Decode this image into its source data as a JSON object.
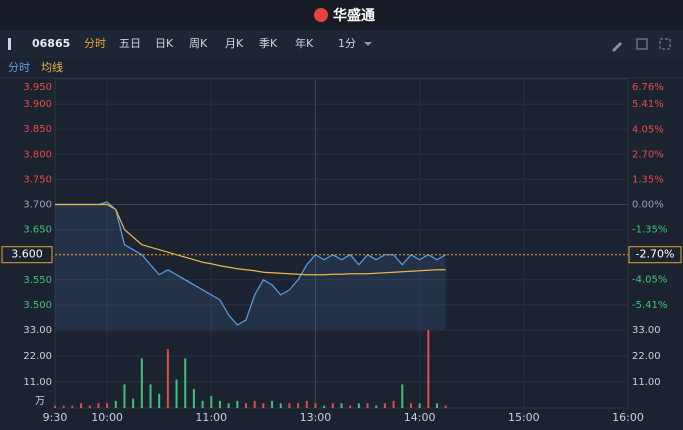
{
  "header": {
    "brand": "华盛通"
  },
  "toolbar": {
    "symbol": "06865",
    "tabs": [
      "分时",
      "五日",
      "日K",
      "周K",
      "月K",
      "季K",
      "年K"
    ],
    "active_tab": 0,
    "interval": "1分"
  },
  "legend": [
    "分时",
    "均线"
  ],
  "chart_data": [
    {
      "type": "line",
      "x": [
        0,
        5,
        10,
        15,
        20,
        25,
        30,
        35,
        40,
        45,
        50,
        55,
        60,
        65,
        70,
        75,
        80,
        85,
        90,
        95,
        100,
        105,
        110,
        115,
        120,
        125,
        130,
        135,
        140,
        145,
        150,
        155,
        160,
        165,
        170,
        175,
        180,
        185,
        190,
        195,
        200,
        205,
        210,
        215,
        220,
        225
      ],
      "series": [
        {
          "name": "分时",
          "color": "#5aa2e8",
          "fill": true,
          "values": [
            3.7,
            3.7,
            3.7,
            3.7,
            3.7,
            3.7,
            3.705,
            3.69,
            3.62,
            3.61,
            3.6,
            3.58,
            3.56,
            3.57,
            3.56,
            3.55,
            3.54,
            3.53,
            3.52,
            3.51,
            3.48,
            3.46,
            3.47,
            3.52,
            3.55,
            3.54,
            3.52,
            3.53,
            3.55,
            3.58,
            3.6,
            3.59,
            3.6,
            3.59,
            3.6,
            3.58,
            3.6,
            3.59,
            3.6,
            3.6,
            3.58,
            3.6,
            3.59,
            3.6,
            3.59,
            3.6
          ]
        },
        {
          "name": "均线",
          "color": "#e8b84a",
          "values": [
            3.7,
            3.7,
            3.7,
            3.7,
            3.7,
            3.7,
            3.7,
            3.69,
            3.65,
            3.635,
            3.62,
            3.615,
            3.61,
            3.605,
            3.6,
            3.595,
            3.59,
            3.585,
            3.582,
            3.578,
            3.575,
            3.572,
            3.57,
            3.568,
            3.565,
            3.564,
            3.563,
            3.562,
            3.561,
            3.56,
            3.56,
            3.56,
            3.561,
            3.561,
            3.562,
            3.562,
            3.562,
            3.563,
            3.564,
            3.565,
            3.566,
            3.567,
            3.568,
            3.569,
            3.57,
            3.57
          ]
        }
      ],
      "xlim": [
        0,
        330
      ],
      "xticks": [
        {
          "value": 0,
          "label": "9:30"
        },
        {
          "value": 30,
          "label": "10:00"
        },
        {
          "value": 90,
          "label": "11:00"
        },
        {
          "value": 150,
          "label": "13:00"
        },
        {
          "value": 210,
          "label": "14:00"
        },
        {
          "value": 270,
          "label": "15:00"
        },
        {
          "value": 330,
          "label": "16:00"
        }
      ],
      "ylim": [
        3.45,
        3.95
      ],
      "yticks": [
        {
          "value": 3.95,
          "label": "3.950"
        },
        {
          "value": 3.9,
          "label": "3.900"
        },
        {
          "value": 3.85,
          "label": "3.850"
        },
        {
          "value": 3.8,
          "label": "3.800"
        },
        {
          "value": 3.75,
          "label": "3.750"
        },
        {
          "value": 3.7,
          "label": "3.700"
        },
        {
          "value": 3.65,
          "label": "3.650"
        },
        {
          "value": 3.55,
          "label": "3.550"
        },
        {
          "value": 3.5,
          "label": "3.500"
        }
      ],
      "y2lim": [
        -6.76,
        6.76
      ],
      "y2ticks": [
        {
          "value": 6.76,
          "label": "6.76%"
        },
        {
          "value": 5.41,
          "label": "5.41%"
        },
        {
          "value": 4.05,
          "label": "4.05%"
        },
        {
          "value": 2.7,
          "label": "2.70%"
        },
        {
          "value": 1.35,
          "label": "1.35%"
        },
        {
          "value": 0,
          "label": "0.00%"
        },
        {
          "value": -1.35,
          "label": "-1.35%"
        },
        {
          "value": -4.05,
          "label": "-4.05%"
        },
        {
          "value": -5.41,
          "label": "-5.41%"
        }
      ],
      "reference": 3.7,
      "last_price": {
        "value": 3.6,
        "label": "3.600"
      },
      "last_change": {
        "value": -2.7,
        "label": "-2.70%"
      },
      "up_color": "#e84a4a",
      "down_color": "#3ec27a",
      "flat_color": "#9aa3b2",
      "grid": true
    },
    {
      "type": "bar",
      "unit": "万",
      "values": [
        1,
        1,
        1,
        2,
        1,
        2,
        2,
        3,
        10,
        4,
        21,
        10,
        6,
        25,
        12,
        21,
        8,
        3,
        5,
        3,
        2,
        3,
        2,
        3,
        2,
        3,
        2,
        2,
        2,
        3,
        2,
        1,
        2,
        2,
        1,
        2,
        2,
        1,
        2,
        3,
        10,
        2,
        2,
        33,
        2,
        1
      ],
      "ylim": [
        0,
        33
      ],
      "yticks": [
        {
          "value": 33,
          "label": "33.00"
        },
        {
          "value": 22,
          "label": "22.00"
        },
        {
          "value": 11,
          "label": "11.00"
        }
      ],
      "grid": true
    }
  ]
}
